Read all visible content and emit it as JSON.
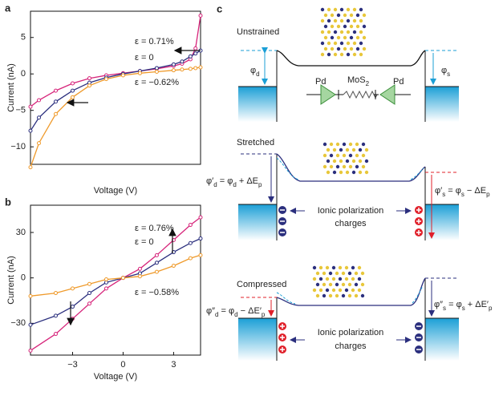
{
  "chart_data": [
    {
      "type": "line",
      "panel": "a",
      "xlabel": "Voltage (V)",
      "ylabel": "Current (nA)",
      "xlim": [
        -5.5,
        4.6
      ],
      "ylim": [
        -12.4,
        8.6
      ],
      "yticks": [
        5,
        0,
        {
          "value": -5,
          "label": "−5"
        },
        {
          "value": -10,
          "label": "−10"
        }
      ],
      "x": [
        -5.5,
        -5,
        -4,
        -3,
        -2,
        -1,
        0,
        1,
        2,
        3,
        3.5,
        4,
        4.3,
        4.6
      ],
      "series": [
        {
          "name": "ε = 0.71%",
          "color": "#d6247a",
          "values": [
            -4.5,
            -3.6,
            -2.3,
            -1.3,
            -0.6,
            -0.2,
            0.1,
            0.4,
            0.7,
            1.1,
            1.4,
            2.0,
            3.5,
            8
          ]
        },
        {
          "name": "ε = 0",
          "color": "#2b2f7e",
          "values": [
            -7.8,
            -6,
            -3.8,
            -2.3,
            -1.2,
            -0.5,
            0,
            0.4,
            0.8,
            1.3,
            1.7,
            2.4,
            2.8,
            3.2
          ]
        },
        {
          "name": "ε = −0.62%",
          "color": "#ef9a2b",
          "values": [
            -12.8,
            -9.5,
            -5.5,
            -3.2,
            -1.6,
            -0.7,
            -0.2,
            0.1,
            0.3,
            0.5,
            0.6,
            0.7,
            0.8,
            0.9
          ]
        }
      ]
    },
    {
      "type": "line",
      "panel": "b",
      "xlabel": "Voltage (V)",
      "ylabel": "Current (nA)",
      "xlim": [
        -5.5,
        4.6
      ],
      "ylim": [
        -51,
        48
      ],
      "xticks": [
        {
          "value": -3,
          "label": "−3"
        },
        0,
        3
      ],
      "yticks": [
        30,
        0,
        {
          "value": -30,
          "label": "−30"
        }
      ],
      "x": [
        -5.5,
        -4,
        -3,
        -2,
        -1,
        0,
        1,
        2,
        3,
        4,
        4.6
      ],
      "series": [
        {
          "name": "ε = 0.76%",
          "color": "#d6247a",
          "values": [
            -48,
            -37,
            -27,
            -17,
            -7,
            0,
            6,
            15,
            25,
            35,
            40
          ]
        },
        {
          "name": "ε = 0",
          "color": "#2b2f7e",
          "values": [
            -31,
            -25,
            -19,
            -10,
            -3,
            0,
            3,
            10,
            17,
            23,
            26
          ]
        },
        {
          "name": "ε = −0.58%",
          "color": "#ef9a2b",
          "values": [
            -12,
            -10,
            -7,
            -4,
            -1,
            0,
            1,
            4,
            8,
            13,
            15
          ]
        }
      ]
    }
  ],
  "diagram": {
    "panel": "c",
    "unstrained": {
      "title": "Unstrained",
      "phi_d": [
        "φ",
        "d"
      ],
      "phi_s": [
        "φ",
        "s"
      ],
      "contact_left": "Pd",
      "channel": [
        "MoS",
        "2"
      ],
      "contact_right": "Pd"
    },
    "stretched": {
      "title": "Stretched",
      "phi_d": [
        "φ′",
        "d",
        " = φ",
        "d",
        " + ΔE",
        "p"
      ],
      "phi_s": [
        "φ′",
        "s",
        " = φ",
        "s",
        " − ΔE",
        "p"
      ],
      "charges": [
        "Ionic polarization",
        "charges"
      ]
    },
    "compressed": {
      "title": "Compressed",
      "phi_d": [
        "φ″",
        "d",
        " = φ",
        "d",
        " − ΔE′",
        "p"
      ],
      "phi_s": [
        "φ″",
        "s",
        " = φ",
        "s",
        " + ΔE′",
        "p"
      ],
      "charges": [
        "Ionic polarization",
        "charges"
      ]
    }
  }
}
